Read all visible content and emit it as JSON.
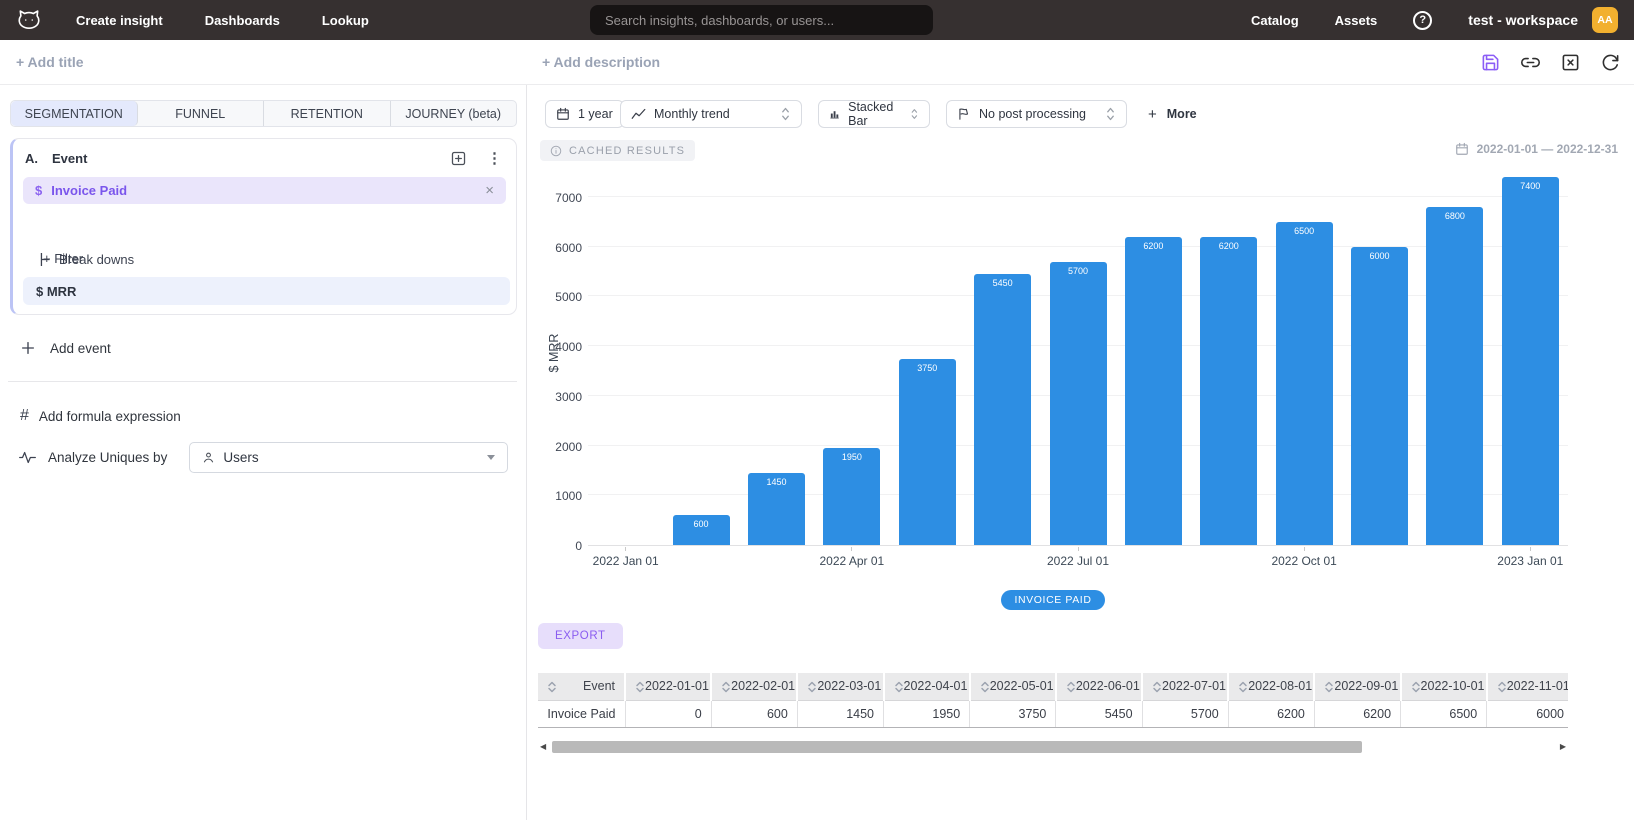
{
  "nav": {
    "items": [
      {
        "label": "Create insight"
      },
      {
        "label": "Dashboards"
      },
      {
        "label": "Lookup"
      }
    ],
    "search": {
      "placeholder": "Search insights, dashboards, or users..."
    },
    "right_items": [
      {
        "label": "Catalog"
      },
      {
        "label": "Assets"
      }
    ],
    "help_label": "?",
    "workspace_name": "test - workspace",
    "avatar_initials": "AA"
  },
  "header": {
    "add_title_label": "+ Add title",
    "add_description_label": "+ Add description"
  },
  "left_panel": {
    "tabs": [
      {
        "label": "SEGMENTATION",
        "active": true
      },
      {
        "label": "FUNNEL",
        "active": false
      },
      {
        "label": "RETENTION",
        "active": false
      },
      {
        "label": "JOURNEY (beta)",
        "active": false
      }
    ],
    "event_card": {
      "index_label": "A.",
      "title": "Event",
      "event_row": {
        "prefix": "$",
        "name": "Invoice Paid",
        "close_label": "×"
      },
      "filter_label": "+ Filter",
      "breakdowns_label": "Break downs",
      "breakdown_value": "$ MRR"
    },
    "add_event_label": "Add event",
    "add_formula_label": "Add formula expression",
    "formula_icon_glyph": "#",
    "analyze_uniques_label": "Analyze Uniques by",
    "analyze_uniques_value": "Users"
  },
  "toolbar": {
    "time_range": "1 year",
    "trend": "Monthly trend",
    "chart_type": "Stacked Bar",
    "post_processing": "No post processing",
    "more_label": "More",
    "more_plus": "+"
  },
  "results": {
    "cached_badge": "CACHED RESULTS",
    "date_range": "2022-01-01 — 2022-12-31",
    "export_label": "EXPORT"
  },
  "chart_data": {
    "type": "bar",
    "title": "",
    "ylabel": "$ MRR",
    "x": [
      "2022-01-01",
      "2022-02-01",
      "2022-03-01",
      "2022-04-01",
      "2022-05-01",
      "2022-06-01",
      "2022-07-01",
      "2022-08-01",
      "2022-09-01",
      "2022-10-01",
      "2022-11-01",
      "2022-12-01",
      "2023-01-01"
    ],
    "series": [
      {
        "name": "Invoice Paid",
        "values": [
          0,
          600,
          1450,
          1950,
          3750,
          5450,
          5700,
          6200,
          6200,
          6500,
          6000,
          6800,
          7400
        ]
      }
    ],
    "bar_color": "#2D8EE3",
    "value_labels": true,
    "grid": true,
    "ylim": [
      0,
      7580
    ],
    "yticks": [
      0,
      1000,
      2000,
      3000,
      4000,
      5000,
      6000,
      7000
    ],
    "xtick_labels": [
      "2022 Jan 01",
      "2022 Apr 01",
      "2022 Jul 01",
      "2022 Oct 01",
      "2023 Jan 01"
    ],
    "xtick_indices": [
      0,
      3,
      6,
      9,
      12
    ],
    "legend": [
      {
        "label": "INVOICE PAID",
        "color": "#2D8EE3"
      }
    ],
    "legend_position": "bottom-center"
  },
  "table": {
    "columns": [
      "Event",
      "2022-01-01",
      "2022-02-01",
      "2022-03-01",
      "2022-04-01",
      "2022-05-01",
      "2022-06-01",
      "2022-07-01",
      "2022-08-01",
      "2022-09-01",
      "2022-10-01",
      "2022-11-01"
    ],
    "rows": [
      [
        "Invoice Paid",
        "0",
        "600",
        "1450",
        "1950",
        "3750",
        "5450",
        "5700",
        "6200",
        "6200",
        "6500",
        "6000"
      ]
    ]
  }
}
